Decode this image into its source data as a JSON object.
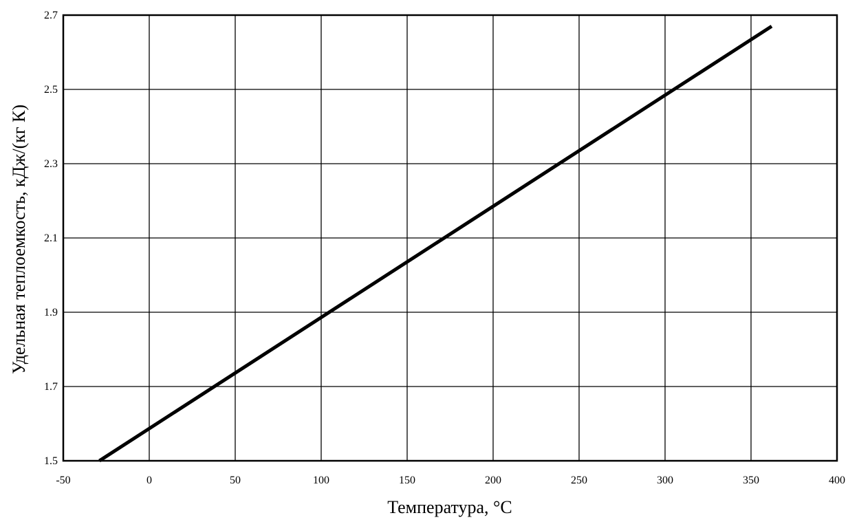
{
  "chart_data": {
    "type": "line",
    "title": "",
    "xlabel": "Температура, °C",
    "ylabel": "Удельная теплоемкость, кДж/(кг К)",
    "xlim": [
      -50,
      400
    ],
    "ylim": [
      1.5,
      2.7
    ],
    "x_ticks": [
      "-50",
      "0",
      "50",
      "100",
      "150",
      "200",
      "250",
      "300",
      "350",
      "400"
    ],
    "y_ticks": [
      "1.5",
      "1.7",
      "1.9",
      "2.1",
      "2.3",
      "2.5",
      "2.7"
    ],
    "x_tick_values": [
      -50,
      0,
      50,
      100,
      150,
      200,
      250,
      300,
      350,
      400
    ],
    "y_tick_values": [
      1.5,
      1.7,
      1.9,
      2.1,
      2.3,
      2.5,
      2.7
    ],
    "grid": true,
    "legend": "none",
    "line_color": "#000000",
    "series": [
      {
        "x": [
          -29,
          362
        ],
        "y": [
          1.5,
          2.67
        ]
      }
    ]
  }
}
